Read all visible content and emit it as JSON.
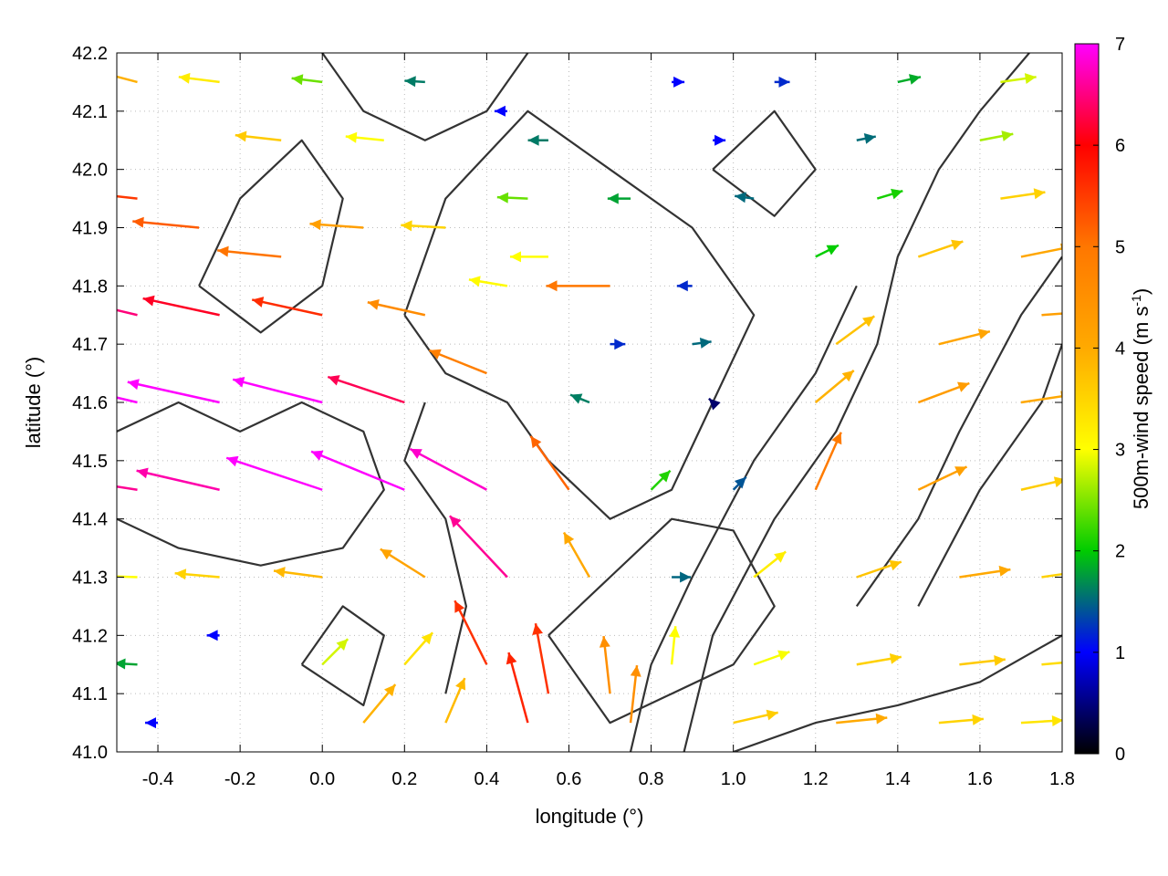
{
  "chart_data": {
    "type": "vector-field",
    "xlabel": "longitude (°)",
    "ylabel": "latitude (°)",
    "colorbar_label": "500m-wind speed (m s-1)",
    "colorbar_label_parts": {
      "base": "500m-wind speed (m s",
      "exp": "-1",
      "close": ")"
    },
    "xlim": [
      -0.5,
      1.8
    ],
    "ylim": [
      41.0,
      42.2
    ],
    "clim": [
      0,
      7
    ],
    "x_ticks": [
      -0.4,
      -0.2,
      0.0,
      0.2,
      0.4,
      0.6,
      0.8,
      1.0,
      1.2,
      1.4,
      1.6,
      1.8
    ],
    "x_tick_labels": [
      "-0.4",
      "-0.2",
      "0.0",
      "0.2",
      "0.4",
      "0.6",
      "0.8",
      "1.0",
      "1.2",
      "1.4",
      "1.6",
      "1.8"
    ],
    "y_ticks": [
      41.0,
      41.1,
      41.2,
      41.3,
      41.4,
      41.5,
      41.6,
      41.7,
      41.8,
      41.9,
      42.0,
      42.1,
      42.2
    ],
    "y_tick_labels": [
      "41.0",
      "41.1",
      "41.2",
      "41.3",
      "41.4",
      "41.5",
      "41.6",
      "41.7",
      "41.8",
      "41.9",
      "42.0",
      "42.1",
      "42.2"
    ],
    "colorbar_ticks": [
      0,
      1,
      2,
      3,
      4,
      5,
      6,
      7
    ],
    "colorbar_tick_labels": [
      "0",
      "1",
      "2",
      "3",
      "4",
      "5",
      "6",
      "7"
    ],
    "palette": [
      "#000000",
      "#0000ff",
      "#00cc00",
      "#ffff00",
      "#ffaa00",
      "#ff7700",
      "#ff0000",
      "#ff00ff"
    ],
    "contour_color": "#333333",
    "grid": "dotted",
    "arrows": [
      {
        "lon": -0.45,
        "lat": 41.95,
        "u": -5.5,
        "v": 0.6
      },
      {
        "lon": -0.3,
        "lat": 41.9,
        "u": -5.2,
        "v": 0.5
      },
      {
        "lon": -0.1,
        "lat": 41.85,
        "u": -5.0,
        "v": 0.5
      },
      {
        "lon": 0.1,
        "lat": 41.9,
        "u": -4.2,
        "v": 0.3
      },
      {
        "lon": 0.3,
        "lat": 41.9,
        "u": -3.5,
        "v": 0.2
      },
      {
        "lon": -0.45,
        "lat": 42.15,
        "u": -3.8,
        "v": 1.0
      },
      {
        "lon": -0.25,
        "lat": 42.15,
        "u": -3.2,
        "v": 0.4
      },
      {
        "lon": 0.0,
        "lat": 42.15,
        "u": -2.4,
        "v": 0.3
      },
      {
        "lon": 0.25,
        "lat": 42.15,
        "u": -1.6,
        "v": 0.1
      },
      {
        "lon": 0.45,
        "lat": 42.1,
        "u": -1.0,
        "v": 0.0
      },
      {
        "lon": 0.85,
        "lat": 42.15,
        "u": 1.0,
        "v": 0.0
      },
      {
        "lon": 1.1,
        "lat": 42.15,
        "u": 1.2,
        "v": 0.0
      },
      {
        "lon": 1.4,
        "lat": 42.15,
        "u": 1.8,
        "v": 0.4
      },
      {
        "lon": 1.65,
        "lat": 42.15,
        "u": 2.8,
        "v": 0.4
      },
      {
        "lon": -0.1,
        "lat": 42.05,
        "u": -3.6,
        "v": 0.4
      },
      {
        "lon": 0.15,
        "lat": 42.05,
        "u": -3.0,
        "v": 0.3
      },
      {
        "lon": 0.55,
        "lat": 42.05,
        "u": -1.6,
        "v": 0.0
      },
      {
        "lon": 0.95,
        "lat": 42.05,
        "u": 1.0,
        "v": 0.0
      },
      {
        "lon": 1.3,
        "lat": 42.05,
        "u": 1.5,
        "v": 0.3
      },
      {
        "lon": 1.6,
        "lat": 42.05,
        "u": 2.6,
        "v": 0.5
      },
      {
        "lon": 0.5,
        "lat": 41.95,
        "u": -2.4,
        "v": 0.1
      },
      {
        "lon": 0.75,
        "lat": 41.95,
        "u": -1.8,
        "v": 0.0
      },
      {
        "lon": 1.05,
        "lat": 41.95,
        "u": -1.5,
        "v": 0.2
      },
      {
        "lon": 1.35,
        "lat": 41.95,
        "u": 2.0,
        "v": 0.6
      },
      {
        "lon": 1.65,
        "lat": 41.95,
        "u": 3.5,
        "v": 0.5
      },
      {
        "lon": 0.55,
        "lat": 41.85,
        "u": -3.0,
        "v": 0.0
      },
      {
        "lon": 0.7,
        "lat": 41.8,
        "u": -5.0,
        "v": 0.0
      },
      {
        "lon": 0.9,
        "lat": 41.8,
        "u": -1.2,
        "v": 0.0
      },
      {
        "lon": 1.2,
        "lat": 41.85,
        "u": 1.8,
        "v": 0.9
      },
      {
        "lon": 1.45,
        "lat": 41.85,
        "u": 3.5,
        "v": 1.2
      },
      {
        "lon": 1.7,
        "lat": 41.85,
        "u": 4.0,
        "v": 0.8
      },
      {
        "lon": -0.45,
        "lat": 41.75,
        "u": -6.3,
        "v": 1.5
      },
      {
        "lon": -0.25,
        "lat": 41.75,
        "u": -6.0,
        "v": 1.3
      },
      {
        "lon": 0.0,
        "lat": 41.75,
        "u": -5.5,
        "v": 1.2
      },
      {
        "lon": 0.25,
        "lat": 41.75,
        "u": -4.5,
        "v": 1.0
      },
      {
        "lon": 0.45,
        "lat": 41.8,
        "u": -3.0,
        "v": 0.5
      },
      {
        "lon": 0.7,
        "lat": 41.7,
        "u": 1.2,
        "v": 0.0
      },
      {
        "lon": 0.9,
        "lat": 41.7,
        "u": 1.5,
        "v": 0.2
      },
      {
        "lon": 1.25,
        "lat": 41.7,
        "u": 3.0,
        "v": 2.2
      },
      {
        "lon": 1.5,
        "lat": 41.7,
        "u": 4.0,
        "v": 1.0
      },
      {
        "lon": 1.75,
        "lat": 41.75,
        "u": 4.2,
        "v": 0.3
      },
      {
        "lon": -0.45,
        "lat": 41.6,
        "u": -7.2,
        "v": 1.7
      },
      {
        "lon": -0.25,
        "lat": 41.6,
        "u": -7.2,
        "v": 1.6
      },
      {
        "lon": 0.0,
        "lat": 41.6,
        "u": -7.0,
        "v": 1.8
      },
      {
        "lon": 0.2,
        "lat": 41.6,
        "u": -6.0,
        "v": 2.0
      },
      {
        "lon": 0.4,
        "lat": 41.65,
        "u": -4.5,
        "v": 1.8
      },
      {
        "lon": 0.65,
        "lat": 41.6,
        "u": -1.5,
        "v": 0.6
      },
      {
        "lon": 0.95,
        "lat": 41.6,
        "u": -0.3,
        "v": 0.3
      },
      {
        "lon": 1.2,
        "lat": 41.6,
        "u": 3.0,
        "v": 2.5
      },
      {
        "lon": 1.45,
        "lat": 41.6,
        "u": 4.0,
        "v": 1.5
      },
      {
        "lon": 1.7,
        "lat": 41.6,
        "u": 4.0,
        "v": 0.6
      },
      {
        "lon": -0.45,
        "lat": 41.45,
        "u": -6.5,
        "v": 1.0
      },
      {
        "lon": -0.25,
        "lat": 41.45,
        "u": -6.5,
        "v": 1.5
      },
      {
        "lon": 0.0,
        "lat": 41.45,
        "u": -7.5,
        "v": 2.5
      },
      {
        "lon": 0.2,
        "lat": 41.45,
        "u": -7.3,
        "v": 3.0
      },
      {
        "lon": 0.4,
        "lat": 41.45,
        "u": -6.0,
        "v": 3.2
      },
      {
        "lon": 0.6,
        "lat": 41.45,
        "u": -3.0,
        "v": 4.2
      },
      {
        "lon": 0.8,
        "lat": 41.45,
        "u": 1.5,
        "v": 1.5
      },
      {
        "lon": 1.0,
        "lat": 41.45,
        "u": 1.0,
        "v": 1.0
      },
      {
        "lon": 1.2,
        "lat": 41.45,
        "u": 2.0,
        "v": 4.5
      },
      {
        "lon": 1.45,
        "lat": 41.45,
        "u": 3.8,
        "v": 1.8
      },
      {
        "lon": 1.7,
        "lat": 41.45,
        "u": 3.5,
        "v": 0.8
      },
      {
        "lon": -0.45,
        "lat": 41.3,
        "u": -3.0,
        "v": 0.1
      },
      {
        "lon": -0.25,
        "lat": 41.3,
        "u": -3.5,
        "v": 0.3
      },
      {
        "lon": 0.0,
        "lat": 41.3,
        "u": -3.8,
        "v": 0.5
      },
      {
        "lon": 0.25,
        "lat": 41.3,
        "u": -3.5,
        "v": 2.2
      },
      {
        "lon": 0.45,
        "lat": 41.3,
        "u": -4.5,
        "v": 4.8
      },
      {
        "lon": 0.65,
        "lat": 41.3,
        "u": -2.0,
        "v": 3.5
      },
      {
        "lon": 0.85,
        "lat": 41.3,
        "u": 1.5,
        "v": 0.0
      },
      {
        "lon": 1.05,
        "lat": 41.3,
        "u": 2.5,
        "v": 2.0
      },
      {
        "lon": 1.3,
        "lat": 41.3,
        "u": 3.5,
        "v": 1.2
      },
      {
        "lon": 1.55,
        "lat": 41.3,
        "u": 4.0,
        "v": 0.6
      },
      {
        "lon": 1.75,
        "lat": 41.3,
        "u": 3.5,
        "v": 0.5
      },
      {
        "lon": -0.45,
        "lat": 41.15,
        "u": -1.8,
        "v": 0.1
      },
      {
        "lon": -0.25,
        "lat": 41.2,
        "u": -1.0,
        "v": 0.0
      },
      {
        "lon": 0.0,
        "lat": 41.15,
        "u": 2.0,
        "v": 2.0
      },
      {
        "lon": 0.2,
        "lat": 41.15,
        "u": 2.2,
        "v": 2.5
      },
      {
        "lon": 0.4,
        "lat": 41.15,
        "u": -2.5,
        "v": 5.0
      },
      {
        "lon": 0.55,
        "lat": 41.1,
        "u": -1.0,
        "v": 5.5
      },
      {
        "lon": 0.7,
        "lat": 41.1,
        "u": -0.5,
        "v": 4.5
      },
      {
        "lon": 0.85,
        "lat": 41.15,
        "u": 0.3,
        "v": 3.0
      },
      {
        "lon": 1.05,
        "lat": 41.15,
        "u": 2.8,
        "v": 1.0
      },
      {
        "lon": 1.3,
        "lat": 41.15,
        "u": 3.5,
        "v": 0.6
      },
      {
        "lon": 1.55,
        "lat": 41.15,
        "u": 3.6,
        "v": 0.4
      },
      {
        "lon": 1.75,
        "lat": 41.15,
        "u": 3.4,
        "v": 0.3
      },
      {
        "lon": -0.4,
        "lat": 41.05,
        "u": -1.0,
        "v": 0.0
      },
      {
        "lon": 0.1,
        "lat": 41.05,
        "u": 2.5,
        "v": 3.0
      },
      {
        "lon": 0.3,
        "lat": 41.05,
        "u": 1.5,
        "v": 3.5
      },
      {
        "lon": 0.5,
        "lat": 41.05,
        "u": -1.5,
        "v": 5.5
      },
      {
        "lon": 0.75,
        "lat": 41.05,
        "u": 0.5,
        "v": 4.5
      },
      {
        "lon": 1.0,
        "lat": 41.05,
        "u": 3.5,
        "v": 0.8
      },
      {
        "lon": 1.25,
        "lat": 41.05,
        "u": 4.0,
        "v": 0.4
      },
      {
        "lon": 1.5,
        "lat": 41.05,
        "u": 3.5,
        "v": 0.3
      },
      {
        "lon": 1.7,
        "lat": 41.05,
        "u": 3.3,
        "v": 0.2
      }
    ],
    "contours": [
      [
        [
          -0.5,
          41.55
        ],
        [
          -0.35,
          41.6
        ],
        [
          -0.2,
          41.55
        ],
        [
          -0.05,
          41.6
        ],
        [
          0.1,
          41.55
        ],
        [
          0.15,
          41.45
        ],
        [
          0.05,
          41.35
        ],
        [
          -0.15,
          41.32
        ],
        [
          -0.35,
          41.35
        ],
        [
          -0.5,
          41.4
        ]
      ],
      [
        [
          -0.3,
          41.8
        ],
        [
          -0.2,
          41.95
        ],
        [
          -0.05,
          42.05
        ],
        [
          0.05,
          41.95
        ],
        [
          0.0,
          41.8
        ],
        [
          -0.15,
          41.72
        ],
        [
          -0.3,
          41.8
        ]
      ],
      [
        [
          0.2,
          41.75
        ],
        [
          0.3,
          41.95
        ],
        [
          0.5,
          42.1
        ],
        [
          0.7,
          42.0
        ],
        [
          0.9,
          41.9
        ],
        [
          1.05,
          41.75
        ],
        [
          0.95,
          41.6
        ],
        [
          0.85,
          41.45
        ],
        [
          0.7,
          41.4
        ],
        [
          0.55,
          41.5
        ],
        [
          0.45,
          41.6
        ],
        [
          0.3,
          41.65
        ],
        [
          0.2,
          41.75
        ]
      ],
      [
        [
          0.55,
          41.2
        ],
        [
          0.7,
          41.3
        ],
        [
          0.85,
          41.4
        ],
        [
          1.0,
          41.38
        ],
        [
          1.1,
          41.25
        ],
        [
          1.0,
          41.15
        ],
        [
          0.85,
          41.1
        ],
        [
          0.7,
          41.05
        ],
        [
          0.55,
          41.2
        ]
      ],
      [
        [
          0.88,
          41.0
        ],
        [
          0.95,
          41.2
        ],
        [
          1.1,
          41.4
        ],
        [
          1.25,
          41.55
        ],
        [
          1.35,
          41.7
        ],
        [
          1.4,
          41.85
        ],
        [
          1.5,
          42.0
        ],
        [
          1.6,
          42.1
        ],
        [
          1.72,
          42.2
        ]
      ],
      [
        [
          0.75,
          41.0
        ],
        [
          0.8,
          41.15
        ],
        [
          0.9,
          41.3
        ],
        [
          1.05,
          41.5
        ],
        [
          1.2,
          41.65
        ],
        [
          1.3,
          41.8
        ]
      ],
      [
        [
          0.95,
          42.0
        ],
        [
          1.1,
          42.1
        ],
        [
          1.2,
          42.0
        ],
        [
          1.1,
          41.92
        ],
        [
          0.95,
          42.0
        ]
      ],
      [
        [
          1.45,
          41.25
        ],
        [
          1.6,
          41.45
        ],
        [
          1.75,
          41.6
        ],
        [
          1.8,
          41.7
        ]
      ],
      [
        [
          1.3,
          41.25
        ],
        [
          1.45,
          41.4
        ],
        [
          1.55,
          41.55
        ],
        [
          1.7,
          41.75
        ],
        [
          1.8,
          41.85
        ]
      ],
      [
        [
          1.0,
          41.0
        ],
        [
          1.2,
          41.05
        ],
        [
          1.4,
          41.08
        ],
        [
          1.6,
          41.12
        ],
        [
          1.8,
          41.2
        ]
      ],
      [
        [
          0.3,
          41.1
        ],
        [
          0.35,
          41.25
        ],
        [
          0.3,
          41.4
        ],
        [
          0.2,
          41.5
        ],
        [
          0.25,
          41.6
        ]
      ],
      [
        [
          0.0,
          42.2
        ],
        [
          0.1,
          42.1
        ],
        [
          0.25,
          42.05
        ],
        [
          0.4,
          42.1
        ],
        [
          0.5,
          42.2
        ]
      ],
      [
        [
          -0.05,
          41.15
        ],
        [
          0.05,
          41.25
        ],
        [
          0.15,
          41.2
        ],
        [
          0.1,
          41.08
        ],
        [
          -0.05,
          41.15
        ]
      ]
    ]
  }
}
